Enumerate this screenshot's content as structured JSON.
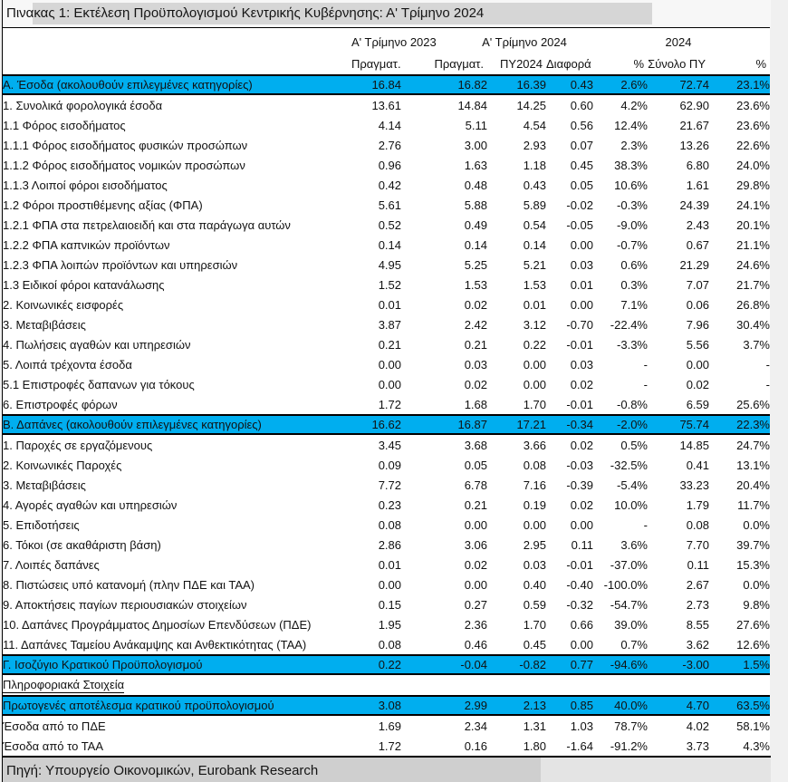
{
  "page": {
    "title": "Πινακας 1: Εκτέλεση Προϋπολογισμού Κεντρικής Κυβέρνησης: Α' Τρίμηνο 2024",
    "source": "Πηγή: Υπουργείο Οικονομικών, Eurobank Research"
  },
  "colors": {
    "highlight": "#00AEEF",
    "title_band": "#D6D6D6",
    "source_band": "#CFCFCF",
    "source_band_light": "#E4E4E4",
    "border": "#000000",
    "table_bg": "#FFFFFF",
    "page_bg": "#F0F0F0"
  },
  "table": {
    "col_groups": [
      "Α' Τρίμηνο 2023",
      "Α' Τρίμηνο 2024",
      "2024"
    ],
    "col_headers": [
      "Πραγματ.",
      "Πραγματ.",
      "ΠΥ2024",
      "Διαφορά",
      "%",
      "Σύνολο ΠΥ",
      "%"
    ],
    "rows": [
      {
        "type": "highlight",
        "label": "Α. Έσοδα (ακολουθούν επιλεγμένες κατηγορίες)",
        "values": [
          "16.84",
          "16.82",
          "16.39",
          "0.43",
          "2.6%",
          "72.74",
          "23.1%"
        ]
      },
      {
        "type": "data",
        "label": "1. Συνολικά φορολογικά έσοδα",
        "values": [
          "13.61",
          "14.84",
          "14.25",
          "0.60",
          "4.2%",
          "62.90",
          "23.6%"
        ]
      },
      {
        "type": "data",
        "label": "1.1 Φόρος εισοδήματος",
        "values": [
          "4.14",
          "5.11",
          "4.54",
          "0.56",
          "12.4%",
          "21.67",
          "23.6%"
        ]
      },
      {
        "type": "data",
        "label": "1.1.1 Φόρος εισοδήματος φυσικών προσώπων",
        "values": [
          "2.76",
          "3.00",
          "2.93",
          "0.07",
          "2.3%",
          "13.26",
          "22.6%"
        ]
      },
      {
        "type": "data",
        "label": "1.1.2 Φόρος εισοδήματος νομικών προσώπων",
        "values": [
          "0.96",
          "1.63",
          "1.18",
          "0.45",
          "38.3%",
          "6.80",
          "24.0%"
        ]
      },
      {
        "type": "data",
        "label": "1.1.3 Λοιποί φόροι εισοδήματος",
        "values": [
          "0.42",
          "0.48",
          "0.43",
          "0.05",
          "10.6%",
          "1.61",
          "29.8%"
        ]
      },
      {
        "type": "data",
        "label": "1.2 Φόροι προστιθέμενης αξίας (ΦΠΑ)",
        "values": [
          "5.61",
          "5.88",
          "5.89",
          "-0.02",
          "-0.3%",
          "24.39",
          "24.1%"
        ]
      },
      {
        "type": "data",
        "label": "1.2.1 ΦΠΑ στα πετρελαιοειδή και στα παράγωγα αυτών",
        "values": [
          "0.52",
          "0.49",
          "0.54",
          "-0.05",
          "-9.0%",
          "2.43",
          "20.1%"
        ]
      },
      {
        "type": "data",
        "label": "1.2.2 ΦΠΑ καπνικών προϊόντων",
        "values": [
          "0.14",
          "0.14",
          "0.14",
          "0.00",
          "-0.7%",
          "0.67",
          "21.1%"
        ]
      },
      {
        "type": "data",
        "label": "1.2.3 ΦΠΑ λοιπών προϊόντων και υπηρεσιών",
        "values": [
          "4.95",
          "5.25",
          "5.21",
          "0.03",
          "0.6%",
          "21.29",
          "24.6%"
        ]
      },
      {
        "type": "data",
        "label": "1.3 Ειδικοί φόροι κατανάλωσης",
        "values": [
          "1.52",
          "1.53",
          "1.53",
          "0.01",
          "0.3%",
          "7.07",
          "21.7%"
        ]
      },
      {
        "type": "data",
        "label": "2. Κοινωνικές εισφορές",
        "values": [
          "0.01",
          "0.02",
          "0.01",
          "0.00",
          "7.1%",
          "0.06",
          "26.8%"
        ]
      },
      {
        "type": "data",
        "label": "3. Μεταβιβάσεις",
        "values": [
          "3.87",
          "2.42",
          "3.12",
          "-0.70",
          "-22.4%",
          "7.96",
          "30.4%"
        ]
      },
      {
        "type": "data",
        "label": "4. Πωλήσεις αγαθών και υπηρεσιών",
        "values": [
          "0.21",
          "0.21",
          "0.22",
          "-0.01",
          "-3.3%",
          "5.56",
          "3.7%"
        ]
      },
      {
        "type": "data",
        "label": "5. Λοιπά τρέχοντα έσοδα",
        "values": [
          "0.00",
          "0.03",
          "0.00",
          "0.03",
          "-",
          "0.00",
          "-"
        ]
      },
      {
        "type": "data",
        "label": "5.1 Επιστροφές δαπανων για τόκους",
        "values": [
          "0.00",
          "0.02",
          "0.00",
          "0.02",
          "-",
          "0.02",
          "-"
        ]
      },
      {
        "type": "data",
        "label": "6. Επιστροφές φόρων",
        "values": [
          "1.72",
          "1.68",
          "1.70",
          "-0.01",
          "-0.8%",
          "6.59",
          "25.6%"
        ]
      },
      {
        "type": "highlight",
        "label": "Β. Δαπάνες (ακολουθούν επιλεγμένες κατηγορίες)",
        "values": [
          "16.62",
          "16.87",
          "17.21",
          "-0.34",
          "-2.0%",
          "75.74",
          "22.3%"
        ]
      },
      {
        "type": "data",
        "label": "1. Παροχές σε εργαζόμενους",
        "values": [
          "3.45",
          "3.68",
          "3.66",
          "0.02",
          "0.5%",
          "14.85",
          "24.7%"
        ]
      },
      {
        "type": "data",
        "label": "2. Κοινωνικές Παροχές",
        "values": [
          "0.09",
          "0.05",
          "0.08",
          "-0.03",
          "-32.5%",
          "0.41",
          "13.1%"
        ]
      },
      {
        "type": "data",
        "label": "3. Μεταβιβάσεις",
        "values": [
          "7.72",
          "6.78",
          "7.16",
          "-0.39",
          "-5.4%",
          "33.23",
          "20.4%"
        ]
      },
      {
        "type": "data",
        "label": "4. Αγορές αγαθών και υπηρεσιών",
        "values": [
          "0.23",
          "0.21",
          "0.19",
          "0.02",
          "10.0%",
          "1.79",
          "11.7%"
        ]
      },
      {
        "type": "data",
        "label": "5. Επιδοτήσεις",
        "values": [
          "0.08",
          "0.00",
          "0.00",
          "0.00",
          "-",
          "0.08",
          "0.0%"
        ]
      },
      {
        "type": "data",
        "label": "6. Τόκοι (σε ακαθάριστη βάση)",
        "values": [
          "2.86",
          "3.06",
          "2.95",
          "0.11",
          "3.6%",
          "7.70",
          "39.7%"
        ]
      },
      {
        "type": "data",
        "label": "7. Λοιπές δαπάνες",
        "values": [
          "0.01",
          "0.02",
          "0.03",
          "-0.01",
          "-37.0%",
          "0.11",
          "15.3%"
        ]
      },
      {
        "type": "data",
        "label": "8. Πιστώσεις υπό κατανομή (πλην ΠΔΕ και ΤΑΑ)",
        "values": [
          "0.00",
          "0.00",
          "0.40",
          "-0.40",
          "-100.0%",
          "2.67",
          "0.0%"
        ]
      },
      {
        "type": "data",
        "label": "9. Αποκτήσεις παγίων περιουσιακών στοιχείων",
        "values": [
          "0.15",
          "0.27",
          "0.59",
          "-0.32",
          "-54.7%",
          "2.73",
          "9.8%"
        ]
      },
      {
        "type": "data",
        "label": "10. Δαπάνες Προγράμματος Δημοσίων Επενδύσεων (ΠΔΕ)",
        "values": [
          "1.95",
          "2.36",
          "1.70",
          "0.66",
          "39.0%",
          "8.55",
          "27.6%"
        ]
      },
      {
        "type": "data",
        "label": "11. Δαπάνες Ταμείου Ανάκαμψης και Ανθεκτικότητας (ΤΑΑ)",
        "values": [
          "0.08",
          "0.46",
          "0.45",
          "0.00",
          "0.7%",
          "3.62",
          "12.6%"
        ]
      },
      {
        "type": "highlight",
        "label": "Γ. Ισοζύγιο Κρατικού Προϋπολογισμού",
        "values": [
          "0.22",
          "-0.04",
          "-0.82",
          "0.77",
          "-94.6%",
          "-3.00",
          "1.5%"
        ]
      },
      {
        "type": "section",
        "label": "Πληροφοριακά Στοιχεία",
        "values": []
      },
      {
        "type": "highlight",
        "label": "Πρωτογενές αποτέλεσμα κρατικού προϋπολογισμού",
        "values": [
          "3.08",
          "2.99",
          "2.13",
          "0.85",
          "40.0%",
          "4.70",
          "63.5%"
        ]
      },
      {
        "type": "data",
        "label": "Έσοδα από το ΠΔΕ",
        "values": [
          "1.69",
          "2.34",
          "1.31",
          "1.03",
          "78.7%",
          "4.02",
          "58.1%"
        ]
      },
      {
        "type": "data",
        "label": "Έσοδα από το ΤΑΑ",
        "values": [
          "1.72",
          "0.16",
          "1.80",
          "-1.64",
          "-91.2%",
          "3.73",
          "4.3%"
        ]
      }
    ]
  }
}
